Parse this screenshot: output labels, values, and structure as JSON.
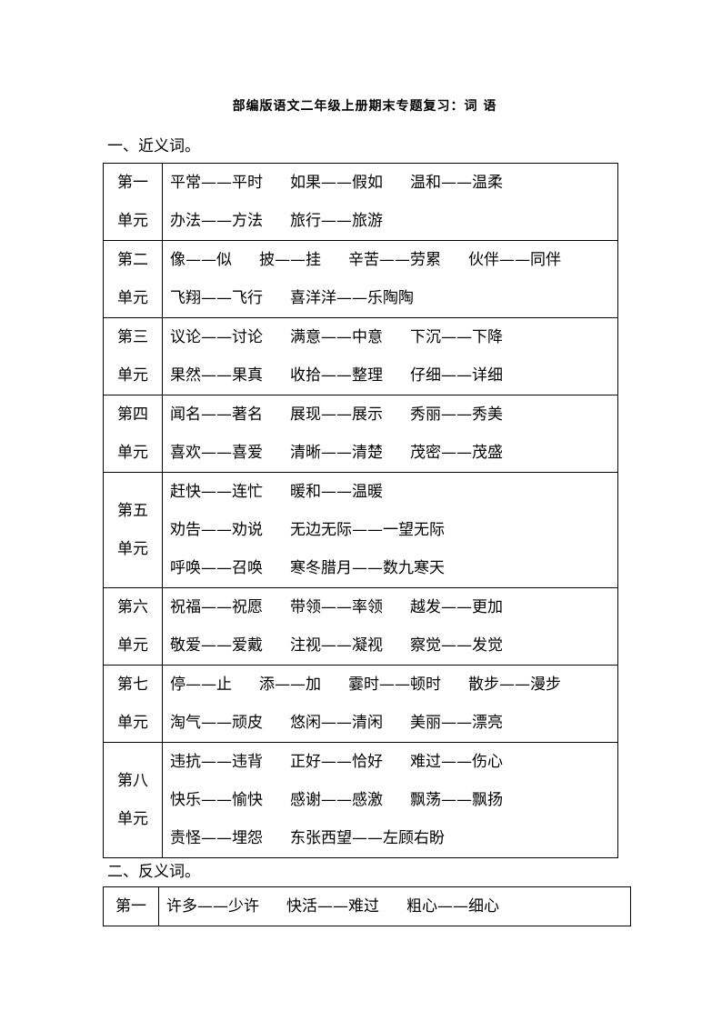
{
  "title": "部编版语文二年级上册期末专题复习：词 语",
  "sections": [
    {
      "heading": "一、近义词。",
      "rows": [
        {
          "unit": [
            "第一",
            "单元"
          ],
          "lines": [
            [
              "平常——平时",
              "如果——假如",
              "温和——温柔"
            ],
            [
              "办法——方法",
              "旅行——旅游"
            ]
          ]
        },
        {
          "unit": [
            "第二",
            "单元"
          ],
          "lines": [
            [
              "像——似",
              "披——挂",
              "辛苦——劳累",
              "伙伴——同伴"
            ],
            [
              "飞翔——飞行",
              "喜洋洋——乐陶陶"
            ]
          ]
        },
        {
          "unit": [
            "第三",
            "单元"
          ],
          "lines": [
            [
              "议论——讨论",
              "满意——中意",
              "下沉——下降"
            ],
            [
              "果然——果真",
              "收拾——整理",
              "仔细——详细"
            ]
          ]
        },
        {
          "unit": [
            "第四",
            "单元"
          ],
          "lines": [
            [
              "闻名——著名",
              "展现——展示",
              "秀丽——秀美"
            ],
            [
              "喜欢——喜爱",
              "清晰——清楚",
              "茂密——茂盛"
            ]
          ]
        },
        {
          "unit": [
            "第五",
            "单元"
          ],
          "lines": [
            [
              "赶快——连忙",
              "暖和——温暖"
            ],
            [
              "劝告——劝说",
              "无边无际——一望无际"
            ],
            [
              "呼唤——召唤",
              "寒冬腊月——数九寒天"
            ]
          ]
        },
        {
          "unit": [
            "第六",
            "单元"
          ],
          "lines": [
            [
              "祝福——祝愿",
              "带领——率领",
              "越发——更加"
            ],
            [
              "敬爱——爱戴",
              "注视——凝视",
              "察觉——发觉"
            ]
          ]
        },
        {
          "unit": [
            "第七",
            "单元"
          ],
          "lines": [
            [
              "停——止",
              "添——加",
              "霎时——顿时",
              "散步——漫步"
            ],
            [
              "淘气——顽皮",
              "悠闲——清闲",
              "美丽——漂亮"
            ]
          ]
        },
        {
          "unit": [
            "第八",
            "单元"
          ],
          "lines": [
            [
              "违抗——违背",
              "正好——恰好",
              "难过——伤心"
            ],
            [
              "快乐——愉快",
              "感谢——感激",
              "飘荡——飘扬"
            ],
            [
              "责怪——埋怨",
              "东张西望——左顾右盼"
            ]
          ]
        }
      ]
    },
    {
      "heading": "二、反义词。",
      "rows": [
        {
          "unit": [
            "第一"
          ],
          "lines": [
            [
              "许多——少许",
              "快活——难过",
              "粗心——细心"
            ]
          ]
        }
      ]
    }
  ]
}
